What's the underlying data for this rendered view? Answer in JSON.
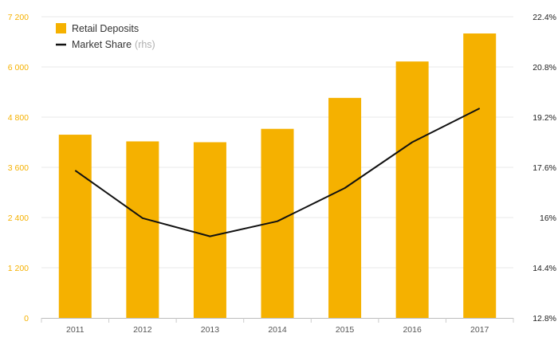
{
  "chart_data": {
    "type": "bar+line",
    "categories": [
      "2011",
      "2012",
      "2013",
      "2014",
      "2015",
      "2016",
      "2017"
    ],
    "series": [
      {
        "name": "Retail Deposits",
        "kind": "bar",
        "axis": "left",
        "color": "#f5b100",
        "values": [
          4380,
          4220,
          4200,
          4520,
          5260,
          6130,
          6800
        ]
      },
      {
        "name": "Market Share",
        "kind": "line",
        "axis": "right",
        "color": "#111111",
        "values": [
          17.5,
          15.98,
          15.4,
          15.88,
          16.94,
          18.4,
          19.48
        ]
      }
    ],
    "left_axis": {
      "ylim": [
        0,
        7200
      ],
      "ticks": [
        0,
        1200,
        2400,
        3600,
        4800,
        6000,
        7200
      ],
      "tick_labels": [
        "0",
        "1 200",
        "2 400",
        "3 600",
        "4 800",
        "6 000",
        "7 200"
      ],
      "label_color": "#f5b100"
    },
    "right_axis": {
      "ylim": [
        12.8,
        22.4
      ],
      "ticks": [
        12.8,
        14.4,
        16,
        17.6,
        19.2,
        20.8,
        22.4
      ],
      "tick_labels": [
        "12.8%",
        "14.4%",
        "16%",
        "17.6%",
        "19.2%",
        "20.8%",
        "22.4%"
      ],
      "label_color": "#222222"
    },
    "legend": {
      "position": "top-left",
      "items": [
        {
          "label": "Retail Deposits",
          "note": ""
        },
        {
          "label": "Market Share",
          "note": "(rhs)"
        }
      ]
    },
    "grid": true
  }
}
